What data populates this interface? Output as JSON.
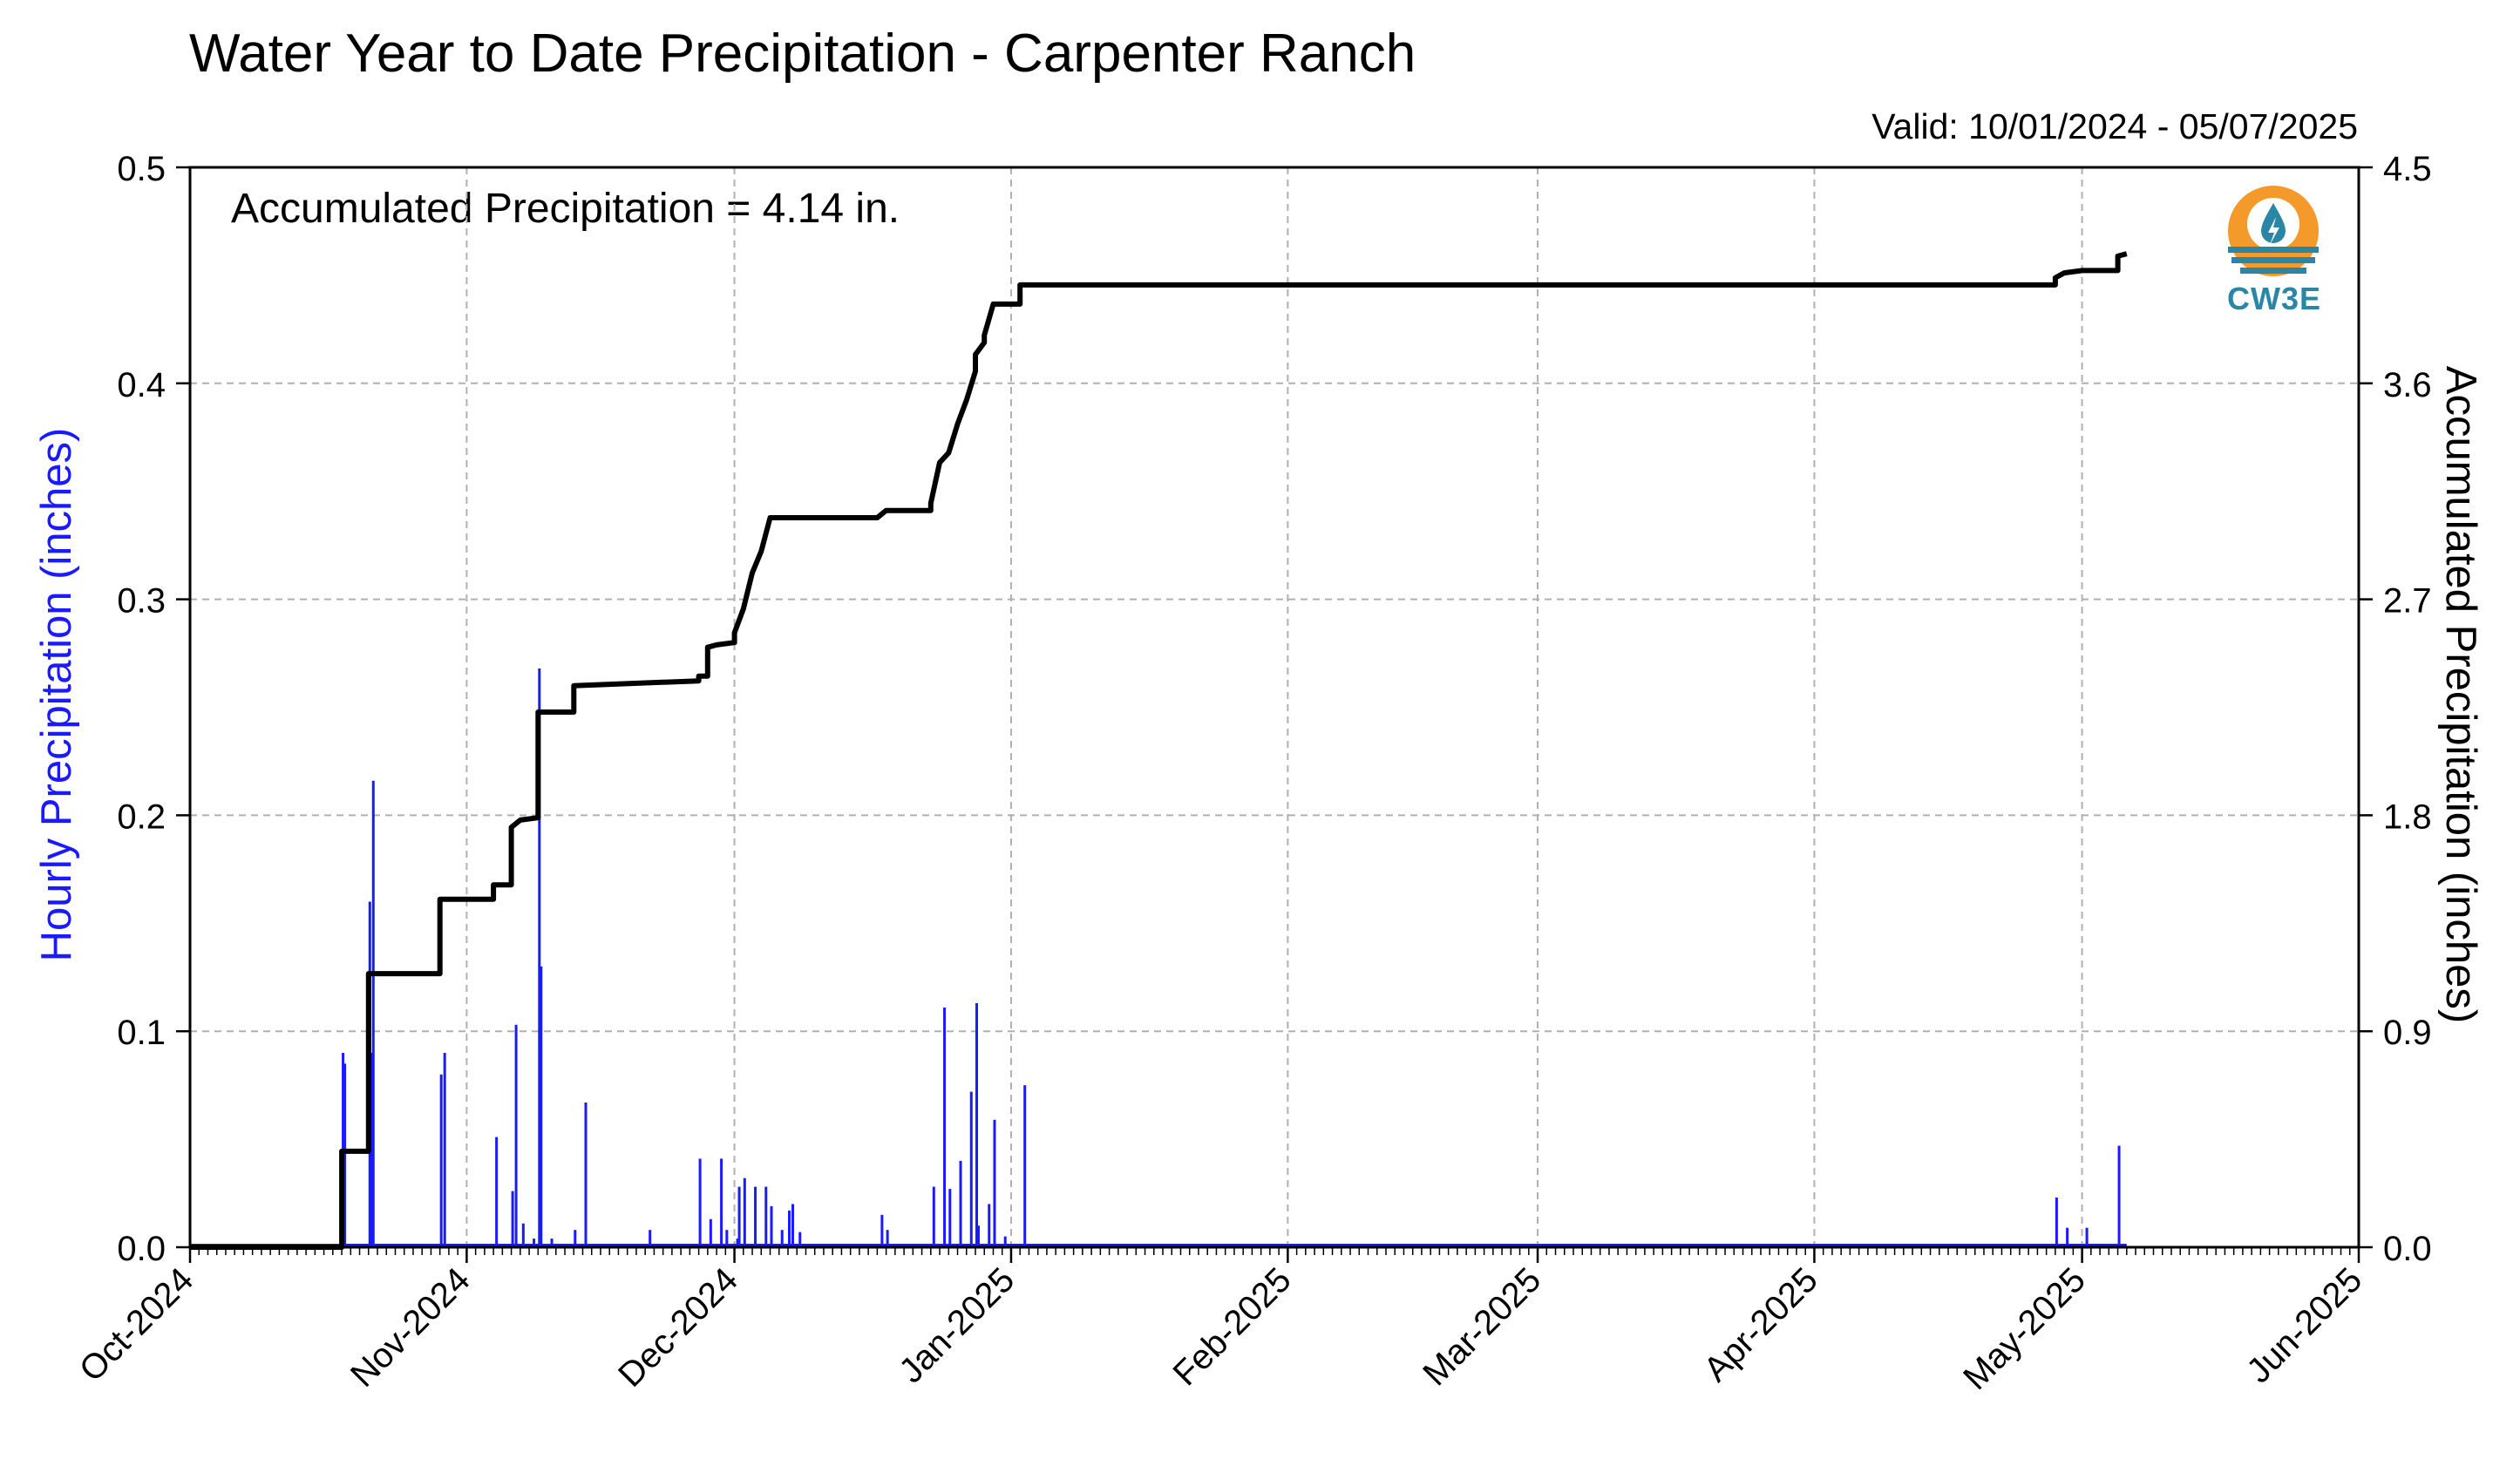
{
  "header": {
    "title": "Water Year to Date Precipitation - Carpenter Ranch",
    "valid": "Valid: 10/01/2024 - 05/07/2025",
    "accumulated_text": "Accumulated Precipitation = 4.14 in."
  },
  "logo": {
    "text": "CW3E",
    "icon": "cw3e-water-drop-logo-icon",
    "colors": {
      "orange": "#f39a2b",
      "blue": "#2b86a6"
    }
  },
  "chart_data": {
    "type": "bar",
    "title": "Water Year to Date Precipitation - Carpenter Ranch",
    "subtitle": "Valid: 10/01/2024 - 05/07/2025",
    "xlabel": "",
    "ylabel": "Hourly Precipitation (inches)",
    "y2label": "Accumulated Precipitation (inches)",
    "xlim": [
      "2024-10-01",
      "2025-06-01"
    ],
    "ylim": [
      0,
      0.5
    ],
    "y2lim": [
      0,
      4.5
    ],
    "grid": true,
    "x_ticks": [
      "Oct-2024",
      "Nov-2024",
      "Dec-2024",
      "Jan-2025",
      "Feb-2025",
      "Mar-2025",
      "Apr-2025",
      "May-2025",
      "Jun-2025"
    ],
    "y_ticks": [
      "0.0",
      "0.1",
      "0.2",
      "0.3",
      "0.4",
      "0.5"
    ],
    "y2_ticks": [
      "0.0",
      "0.9",
      "1.8",
      "2.7",
      "3.6",
      "4.5"
    ],
    "colors": {
      "hourly": "#1a1aff",
      "accumulated": "#000000"
    },
    "series": [
      {
        "name": "Hourly Precipitation",
        "type": "bar",
        "axis": "left",
        "x": [
          "2024-10-18",
          "2024-10-18",
          "2024-10-21",
          "2024-10-21",
          "2024-10-21",
          "2024-10-29",
          "2024-10-29",
          "2024-11-04",
          "2024-11-06",
          "2024-11-06",
          "2024-11-07",
          "2024-11-08",
          "2024-11-09",
          "2024-11-09",
          "2024-11-10",
          "2024-11-13",
          "2024-11-14",
          "2024-11-21",
          "2024-11-27",
          "2024-11-28",
          "2024-11-29",
          "2024-11-30",
          "2024-12-01",
          "2024-12-01",
          "2024-12-02",
          "2024-12-03",
          "2024-12-04",
          "2024-12-05",
          "2024-12-06",
          "2024-12-07",
          "2024-12-07",
          "2024-12-08",
          "2024-12-17",
          "2024-12-18",
          "2024-12-23",
          "2024-12-24",
          "2024-12-25",
          "2024-12-26",
          "2024-12-27",
          "2024-12-28",
          "2024-12-28",
          "2024-12-29",
          "2024-12-30",
          "2024-12-31",
          "2025-01-02",
          "2025-04-28",
          "2025-04-29",
          "2025-05-01",
          "2025-05-05"
        ],
        "values": [
          0.09,
          0.085,
          0.216,
          0.16,
          0.09,
          0.09,
          0.08,
          0.051,
          0.103,
          0.026,
          0.011,
          0.004,
          0.268,
          0.13,
          0.004,
          0.008,
          0.067,
          0.008,
          0.041,
          0.013,
          0.041,
          0.008,
          0.004,
          0.028,
          0.032,
          0.028,
          0.028,
          0.019,
          0.008,
          0.02,
          0.017,
          0.007,
          0.015,
          0.008,
          0.028,
          0.111,
          0.027,
          0.04,
          0.072,
          0.113,
          0.01,
          0.02,
          0.059,
          0.005,
          0.075,
          0.023,
          0.009,
          0.009,
          0.047
        ]
      },
      {
        "name": "Accumulated Precipitation",
        "type": "line",
        "axis": "right",
        "x": [
          "2024-10-01",
          "2024-10-18",
          "2024-10-18",
          "2024-10-21",
          "2024-10-21",
          "2024-10-29",
          "2024-10-29",
          "2024-11-04",
          "2024-11-04",
          "2024-11-06",
          "2024-11-06",
          "2024-11-07",
          "2024-11-09",
          "2024-11-09",
          "2024-11-13",
          "2024-11-13",
          "2024-11-27",
          "2024-11-27",
          "2024-11-28",
          "2024-11-28",
          "2024-11-29",
          "2024-12-01",
          "2024-12-01",
          "2024-12-02",
          "2024-12-03",
          "2024-12-04",
          "2024-12-05",
          "2024-12-17",
          "2024-12-18",
          "2024-12-23",
          "2024-12-23",
          "2024-12-24",
          "2024-12-25",
          "2024-12-26",
          "2024-12-27",
          "2024-12-28",
          "2024-12-28",
          "2024-12-29",
          "2024-12-29",
          "2024-12-30",
          "2024-12-31",
          "2025-01-01",
          "2025-01-02",
          "2025-01-02",
          "2025-04-28",
          "2025-04-28",
          "2025-04-29",
          "2025-05-01",
          "2025-05-05",
          "2025-05-05",
          "2025-05-06"
        ],
        "values": [
          0,
          0,
          0.4,
          0.4,
          1.14,
          1.14,
          1.45,
          1.45,
          1.51,
          1.51,
          1.75,
          1.78,
          1.79,
          2.23,
          2.23,
          2.34,
          2.36,
          2.38,
          2.38,
          2.5,
          2.51,
          2.52,
          2.56,
          2.66,
          2.81,
          2.9,
          3.04,
          3.04,
          3.07,
          3.07,
          3.1,
          3.27,
          3.31,
          3.43,
          3.53,
          3.65,
          3.72,
          3.77,
          3.8,
          3.93,
          3.93,
          3.93,
          3.93,
          4.01,
          4.01,
          4.04,
          4.06,
          4.07,
          4.07,
          4.13,
          4.14
        ]
      }
    ]
  }
}
